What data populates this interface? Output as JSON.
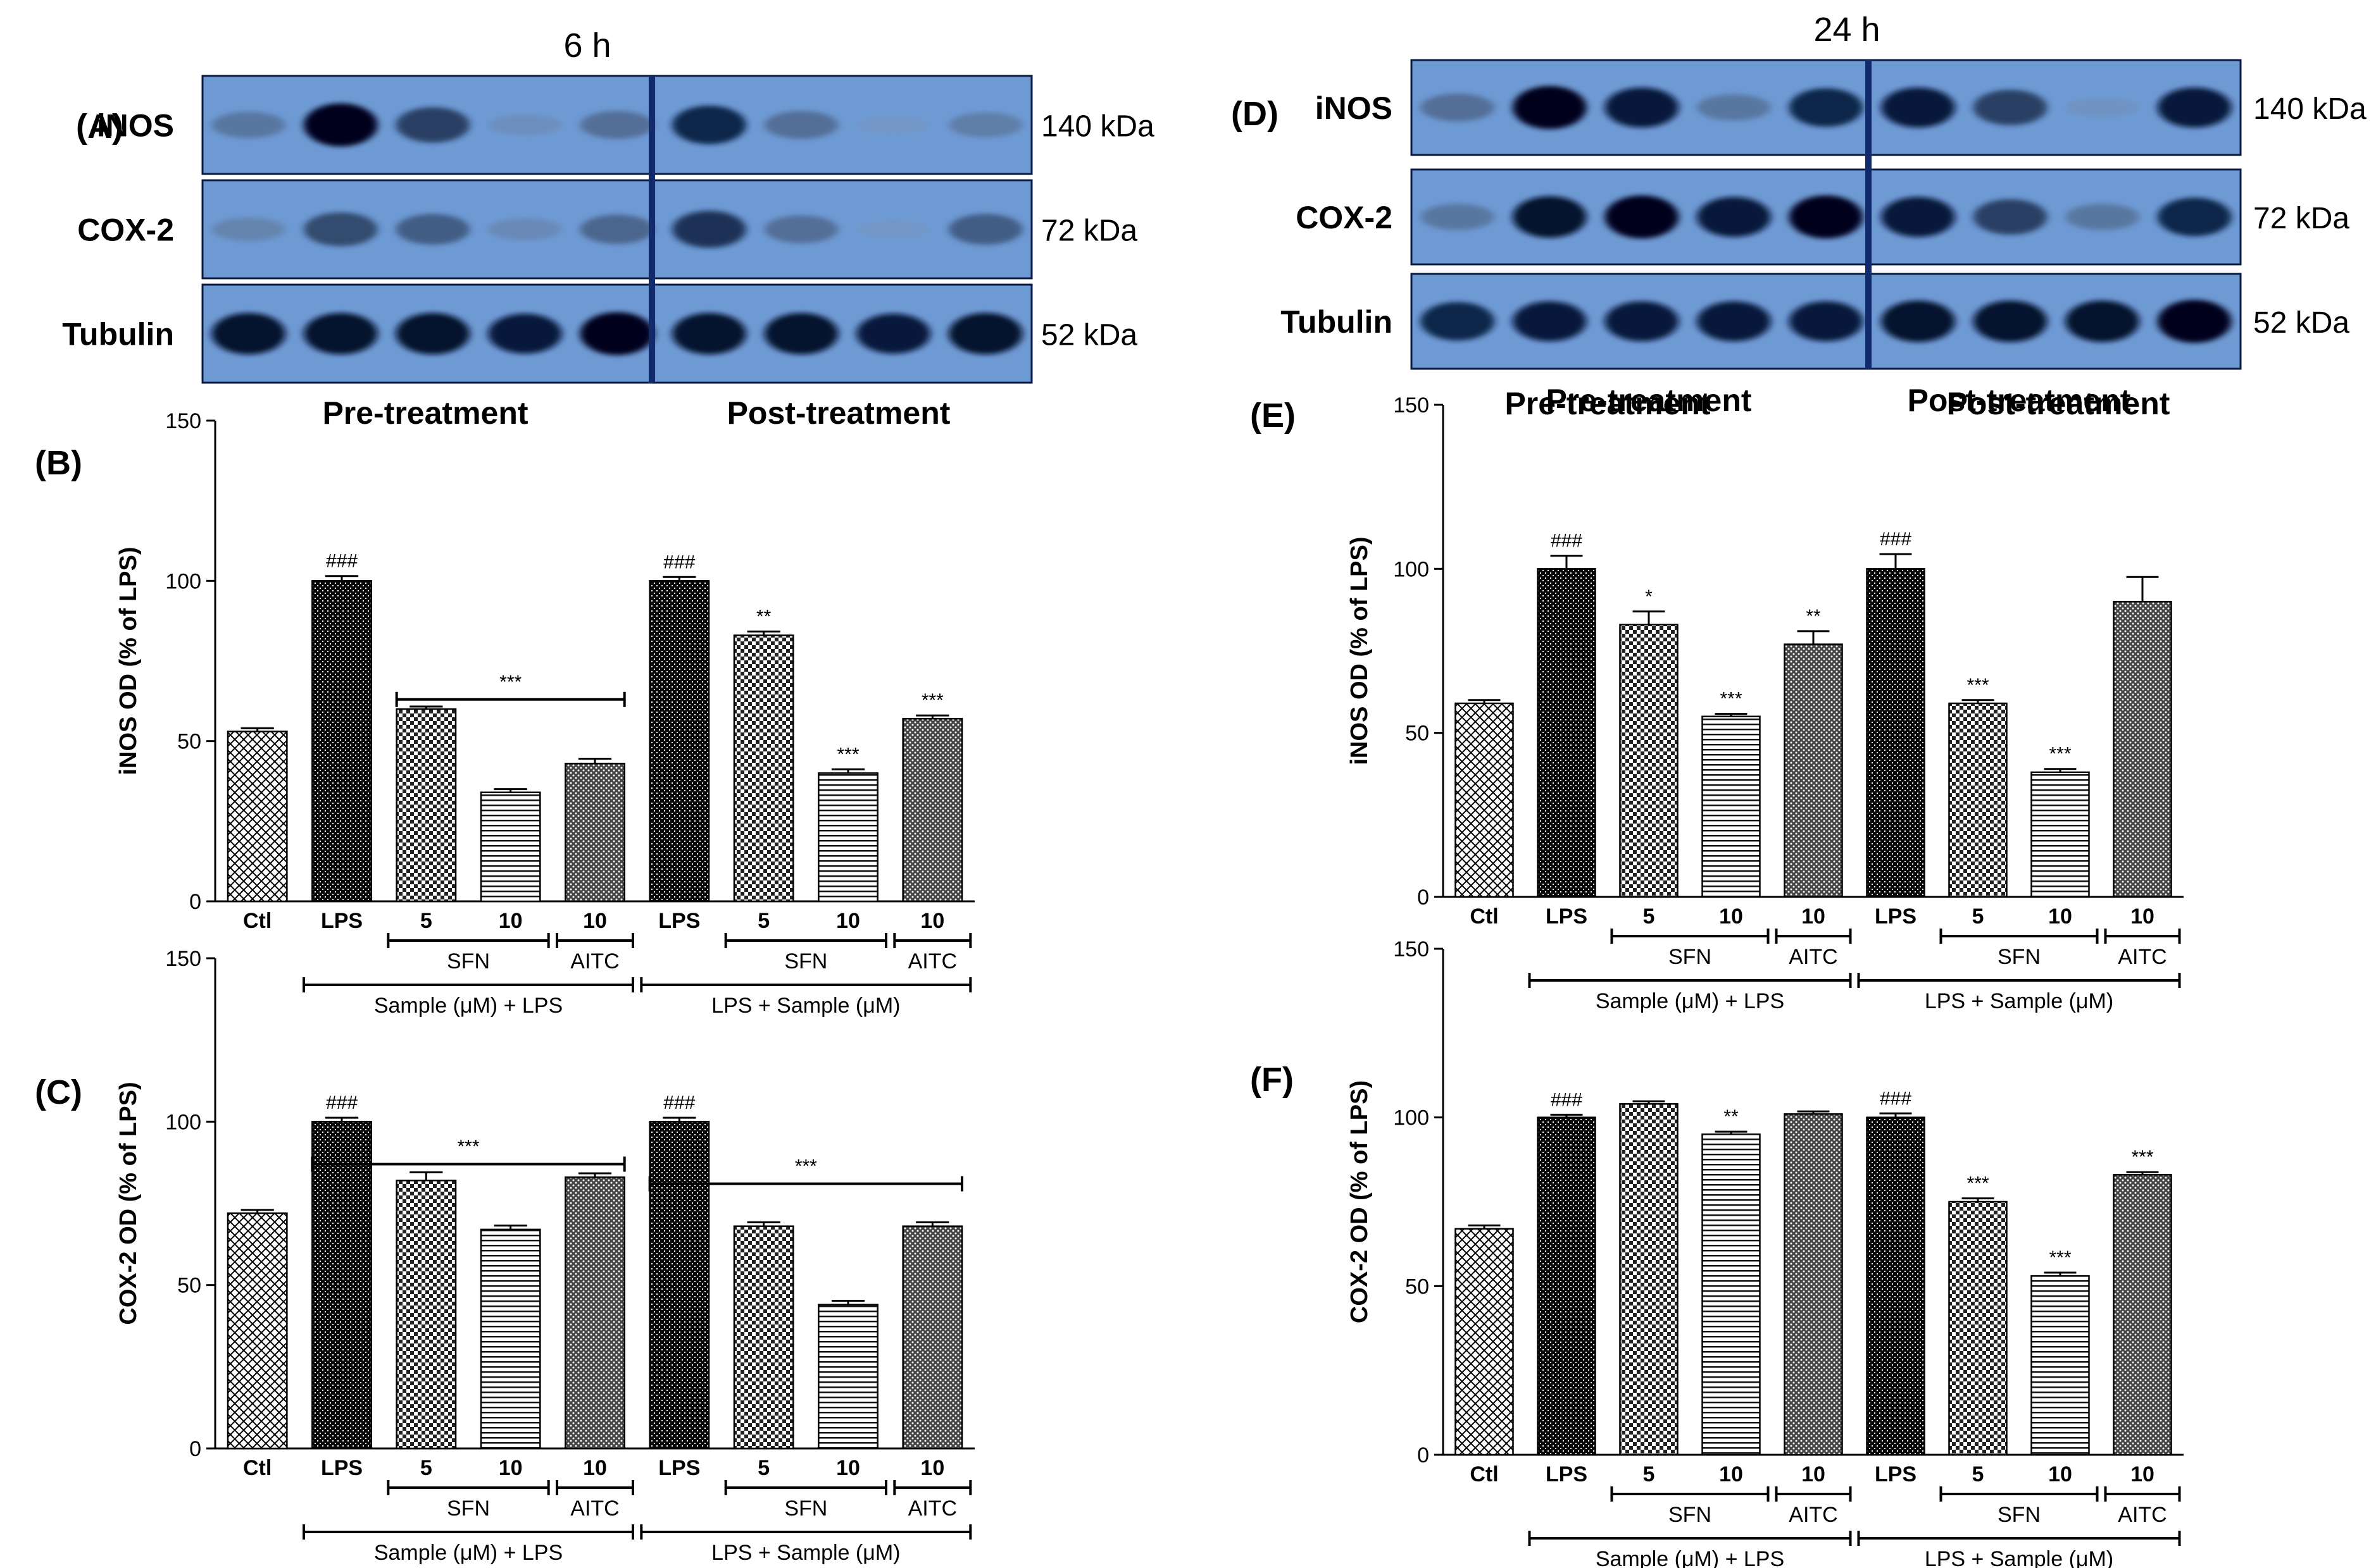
{
  "figure": {
    "colors": {
      "blot_bg": "#6e9ad4",
      "divider": "#102a6b",
      "ink": "#000000"
    },
    "blot_sets": [
      {
        "id": "A",
        "panel_label": "(A)",
        "time_label": "6 h",
        "rows": [
          {
            "protein": "iNOS",
            "mw": "140 kDa",
            "intensities": [
              0.45,
              1.0,
              0.75,
              0.25,
              0.5,
              0.85,
              0.5,
              0.15,
              0.4
            ]
          },
          {
            "protein": "COX-2",
            "mw": "72 kDa",
            "intensities": [
              0.35,
              0.7,
              0.6,
              0.3,
              0.55,
              0.8,
              0.5,
              0.15,
              0.6
            ]
          },
          {
            "protein": "Tubulin",
            "mw": "52 kDa",
            "intensities": [
              0.95,
              0.95,
              0.95,
              0.9,
              1.0,
              0.95,
              0.95,
              0.9,
              0.95
            ]
          }
        ],
        "group_labels": [
          "Pre-treatment",
          "Post-treatment"
        ]
      },
      {
        "id": "D",
        "panel_label": "(D)",
        "time_label": "24 h",
        "rows": [
          {
            "protein": "iNOS",
            "mw": "140 kDa",
            "intensities": [
              0.5,
              1.0,
              0.9,
              0.45,
              0.85,
              0.9,
              0.75,
              0.2,
              0.9
            ]
          },
          {
            "protein": "COX-2",
            "mw": "72 kDa",
            "intensities": [
              0.45,
              0.95,
              1.0,
              0.9,
              1.0,
              0.9,
              0.75,
              0.45,
              0.85
            ]
          },
          {
            "protein": "Tubulin",
            "mw": "52 kDa",
            "intensities": [
              0.85,
              0.9,
              0.9,
              0.9,
              0.9,
              0.95,
              0.95,
              0.95,
              1.0
            ]
          }
        ],
        "group_labels": [
          "Pre-treatment",
          "Post-treatment"
        ]
      }
    ]
  },
  "chart_data": [
    {
      "id": "B",
      "panel_label": "(B)",
      "type": "bar",
      "ylabel": "iNOS OD  (% of LPS)",
      "ylim": [
        0,
        150
      ],
      "yticks": [
        0,
        50,
        100,
        150
      ],
      "categories": [
        "Ctl",
        "LPS",
        "5",
        "10",
        "10",
        "LPS",
        "5",
        "10",
        "10"
      ],
      "values": [
        53,
        100,
        60,
        34,
        43,
        100,
        83,
        40,
        57
      ],
      "errors": [
        1,
        1.5,
        0.8,
        1,
        1.5,
        1.2,
        1.2,
        1.2,
        1
      ],
      "annotations": [
        "",
        "###",
        "",
        "",
        "",
        "###",
        "**",
        "***",
        "***"
      ],
      "patterns": [
        "xhatch",
        "dense",
        "checker",
        "hlines",
        "dots",
        "dense",
        "checker",
        "hlines",
        "dots"
      ],
      "brackets": [
        {
          "from": 2,
          "to": 4,
          "value": 63,
          "label": "***"
        }
      ],
      "sub_groups": [
        {
          "from": 2,
          "to": 3,
          "label": "SFN"
        },
        {
          "from": 4,
          "to": 4,
          "label": "AITC"
        },
        {
          "from": 6,
          "to": 7,
          "label": "SFN"
        },
        {
          "from": 8,
          "to": 8,
          "label": "AITC"
        }
      ],
      "main_groups": [
        {
          "from": 1,
          "to": 4,
          "label": "Sample (μM) + LPS"
        },
        {
          "from": 5,
          "to": 8,
          "label": "LPS + Sample (μM)"
        }
      ],
      "group_headers": []
    },
    {
      "id": "C",
      "panel_label": "(C)",
      "type": "bar",
      "ylabel": "COX-2 OD  (% of LPS)",
      "ylim": [
        0,
        150
      ],
      "yticks": [
        0,
        50,
        100,
        150
      ],
      "categories": [
        "Ctl",
        "LPS",
        "5",
        "10",
        "10",
        "LPS",
        "5",
        "10",
        "10"
      ],
      "values": [
        72,
        100,
        82,
        67,
        83,
        100,
        68,
        44,
        68
      ],
      "errors": [
        1,
        1.2,
        2.5,
        1.2,
        1.2,
        1.2,
        1.2,
        1.2,
        1.2
      ],
      "annotations": [
        "",
        "###",
        "",
        "",
        "",
        "###",
        "",
        "",
        ""
      ],
      "patterns": [
        "xhatch",
        "dense",
        "checker",
        "hlines",
        "dots",
        "dense",
        "checker",
        "hlines",
        "dots"
      ],
      "brackets": [
        {
          "from": 1,
          "to": 4,
          "value": 87,
          "label": "***"
        },
        {
          "from": 5,
          "to": 8,
          "value": 81,
          "label": "***"
        }
      ],
      "sub_groups": [
        {
          "from": 2,
          "to": 3,
          "label": "SFN"
        },
        {
          "from": 4,
          "to": 4,
          "label": "AITC"
        },
        {
          "from": 6,
          "to": 7,
          "label": "SFN"
        },
        {
          "from": 8,
          "to": 8,
          "label": "AITC"
        }
      ],
      "main_groups": [
        {
          "from": 1,
          "to": 4,
          "label": "Sample (μM) + LPS"
        },
        {
          "from": 5,
          "to": 8,
          "label": "LPS + Sample (μM)"
        }
      ],
      "group_headers": []
    },
    {
      "id": "E",
      "panel_label": "(E)",
      "type": "bar",
      "ylabel": "iNOS OD  (% of LPS)",
      "ylim": [
        0,
        150
      ],
      "yticks": [
        0,
        50,
        100,
        150
      ],
      "categories": [
        "Ctl",
        "LPS",
        "5",
        "10",
        "10",
        "LPS",
        "5",
        "10",
        "10"
      ],
      "values": [
        59,
        100,
        83,
        55,
        77,
        100,
        59,
        38,
        90
      ],
      "errors": [
        1,
        4,
        4,
        0.8,
        4,
        4.5,
        1,
        1,
        7.5
      ],
      "annotations": [
        "",
        "###",
        "*",
        "***",
        "**",
        "###",
        "***",
        "***",
        ""
      ],
      "patterns": [
        "xhatch",
        "dense",
        "checker",
        "hlines",
        "dots",
        "dense",
        "checker",
        "hlines",
        "dots"
      ],
      "brackets": [],
      "sub_groups": [
        {
          "from": 2,
          "to": 3,
          "label": "SFN"
        },
        {
          "from": 4,
          "to": 4,
          "label": "AITC"
        },
        {
          "from": 6,
          "to": 7,
          "label": "SFN"
        },
        {
          "from": 8,
          "to": 8,
          "label": "AITC"
        }
      ],
      "main_groups": [
        {
          "from": 1,
          "to": 4,
          "label": "Sample (μM) + LPS"
        },
        {
          "from": 5,
          "to": 8,
          "label": "LPS + Sample (μM)"
        }
      ],
      "group_headers": [
        {
          "from": 0,
          "to": 4,
          "label": "Pre-treatment"
        },
        {
          "from": 5,
          "to": 8,
          "label": "Post-treatment"
        }
      ]
    },
    {
      "id": "F",
      "panel_label": "(F)",
      "type": "bar",
      "ylabel": "COX-2 OD  (% of LPS)",
      "ylim": [
        0,
        150
      ],
      "yticks": [
        0,
        50,
        100,
        150
      ],
      "categories": [
        "Ctl",
        "LPS",
        "5",
        "10",
        "10",
        "LPS",
        "5",
        "10",
        "10"
      ],
      "values": [
        67,
        100,
        104,
        95,
        101,
        100,
        75,
        53,
        83
      ],
      "errors": [
        1,
        0.8,
        0.8,
        0.8,
        0.8,
        1.2,
        1,
        1,
        0.8
      ],
      "annotations": [
        "",
        "###",
        "",
        "**",
        "",
        "###",
        "***",
        "***",
        "***"
      ],
      "patterns": [
        "xhatch",
        "dense",
        "checker",
        "hlines",
        "dots",
        "dense",
        "checker",
        "hlines",
        "dots"
      ],
      "brackets": [],
      "sub_groups": [
        {
          "from": 2,
          "to": 3,
          "label": "SFN"
        },
        {
          "from": 4,
          "to": 4,
          "label": "AITC"
        },
        {
          "from": 6,
          "to": 7,
          "label": "SFN"
        },
        {
          "from": 8,
          "to": 8,
          "label": "AITC"
        }
      ],
      "main_groups": [
        {
          "from": 1,
          "to": 4,
          "label": "Sample (μM) + LPS"
        },
        {
          "from": 5,
          "to": 8,
          "label": "LPS + Sample (μM)"
        }
      ],
      "group_headers": []
    }
  ]
}
